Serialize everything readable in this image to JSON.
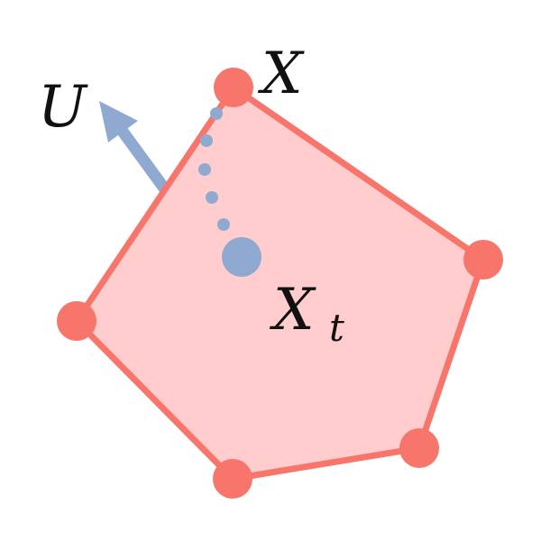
{
  "labels": {
    "vertex": "X",
    "direction": "U",
    "point": "X",
    "point_subscript": "t"
  },
  "colors": {
    "polygon_fill": "#ffcdcd",
    "polygon_edge": "#f7756b",
    "vertex": "#f7756b",
    "path": "#8fa9d0",
    "arrow": "#8fa9d0",
    "text": "#111111"
  }
}
